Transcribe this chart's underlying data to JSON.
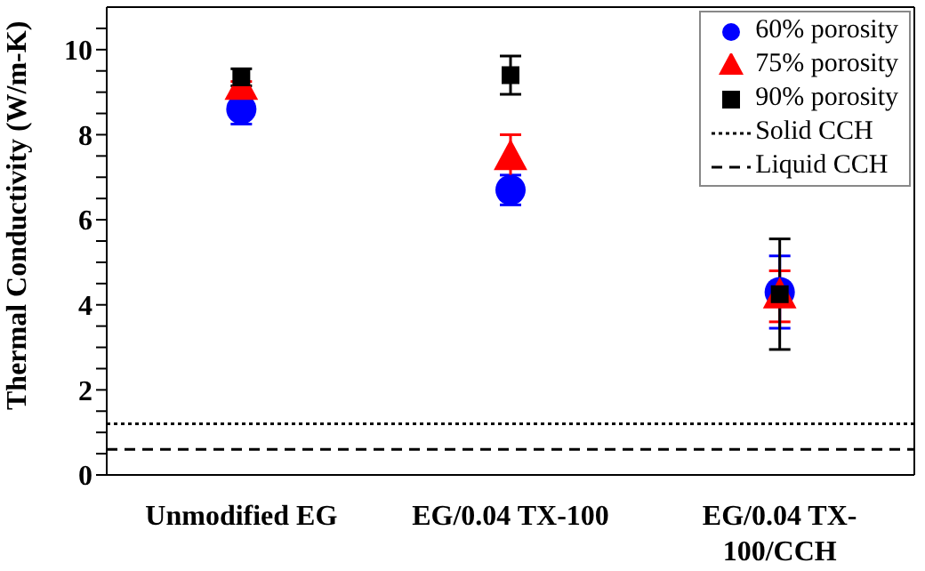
{
  "chart_data": {
    "type": "scatter",
    "ylabel": "Thermal Conductivity (W/m-K)",
    "categories": [
      "Unmodified EG",
      "EG/0.04 TX-100",
      "EG/0.04 TX-100/CCH"
    ],
    "series": [
      {
        "name": "60% porosity",
        "color": "#0000ff",
        "marker": "circle",
        "values": [
          8.6,
          6.7,
          4.3
        ],
        "errors": [
          0.35,
          0.35,
          0.85
        ]
      },
      {
        "name": "75% porosity",
        "color": "#ff0000",
        "marker": "triangle",
        "values": [
          9.1,
          7.45,
          4.2
        ],
        "errors": [
          0.15,
          0.55,
          0.6
        ]
      },
      {
        "name": "90% porosity",
        "color": "#000000",
        "marker": "square",
        "values": [
          9.35,
          9.4,
          4.25
        ],
        "errors": [
          0.2,
          0.45,
          1.3
        ]
      }
    ],
    "ref_lines": [
      {
        "axis": "y",
        "value": 1.2,
        "label": "Solid CCH",
        "color": "#000000",
        "line_style": "dotted"
      },
      {
        "axis": "y",
        "value": 0.6,
        "label": "Liquid CCH",
        "color": "#000000",
        "line_style": "dashed"
      }
    ],
    "ylim": [
      0,
      11
    ],
    "yticks": [
      0,
      {
        "value": 0.5,
        "label": null
      },
      {
        "value": 1,
        "label": null
      },
      {
        "value": 1.5,
        "label": null
      },
      2,
      {
        "value": 2.5,
        "label": null
      },
      {
        "value": 3,
        "label": null
      },
      {
        "value": 3.5,
        "label": null
      },
      4,
      {
        "value": 4.5,
        "label": null
      },
      {
        "value": 5,
        "label": null
      },
      {
        "value": 5.5,
        "label": null
      },
      6,
      {
        "value": 6.5,
        "label": null
      },
      {
        "value": 7,
        "label": null
      },
      {
        "value": 7.5,
        "label": null
      },
      8,
      {
        "value": 8.5,
        "label": null
      },
      {
        "value": 9,
        "label": null
      },
      {
        "value": 9.5,
        "label": null
      },
      10,
      {
        "value": 10.5,
        "label": null
      }
    ],
    "legend": "top right",
    "grid": false
  }
}
